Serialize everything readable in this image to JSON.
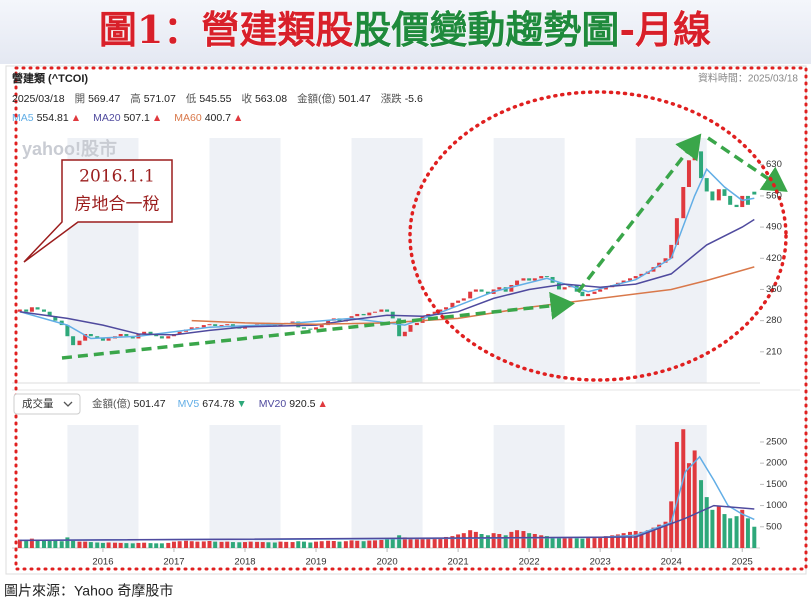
{
  "chart_data": {
    "type": "candlestick",
    "title": [
      "圖1：營建類股",
      "股價變動趨勢圖",
      "-月線"
    ],
    "source": "圖片來源：Yahoo 奇摩股市",
    "watermark": "yahoo!股市",
    "annotation": [
      "2016.1.1",
      "房地合一稅"
    ],
    "header": {
      "name": "營建類 (^TCOI)",
      "time": "資料時間：2025/03/18",
      "date": "2025/03/18",
      "quotes": [
        {
          "label": "開",
          "value": 569.47
        },
        {
          "label": "高",
          "value": 571.07
        },
        {
          "label": "低",
          "value": 545.55
        },
        {
          "label": "收",
          "value": 563.08
        },
        {
          "label": "金額(億)",
          "value": 501.47
        },
        {
          "label": "漲跌",
          "value": -5.6
        }
      ]
    },
    "up_color": "#e0393e",
    "down_color": "#2ea87a",
    "x": [
      2014.83,
      2014.92,
      2015.0,
      2015.08,
      2015.17,
      2015.25,
      2015.33,
      2015.42,
      2015.5,
      2015.58,
      2015.67,
      2015.75,
      2015.83,
      2015.92,
      2016.0,
      2016.08,
      2016.17,
      2016.25,
      2016.33,
      2016.42,
      2016.5,
      2016.58,
      2016.67,
      2016.75,
      2016.83,
      2016.92,
      2017.0,
      2017.08,
      2017.17,
      2017.25,
      2017.33,
      2017.42,
      2017.5,
      2017.58,
      2017.67,
      2017.75,
      2017.83,
      2017.92,
      2018.0,
      2018.08,
      2018.17,
      2018.25,
      2018.33,
      2018.42,
      2018.5,
      2018.58,
      2018.67,
      2018.75,
      2018.83,
      2018.92,
      2019.0,
      2019.08,
      2019.17,
      2019.25,
      2019.33,
      2019.42,
      2019.5,
      2019.58,
      2019.67,
      2019.75,
      2019.83,
      2019.92,
      2020.0,
      2020.08,
      2020.17,
      2020.25,
      2020.33,
      2020.42,
      2020.5,
      2020.58,
      2020.67,
      2020.75,
      2020.83,
      2020.92,
      2021.0,
      2021.08,
      2021.17,
      2021.25,
      2021.33,
      2021.42,
      2021.5,
      2021.58,
      2021.67,
      2021.75,
      2021.83,
      2021.92,
      2022.0,
      2022.08,
      2022.17,
      2022.25,
      2022.33,
      2022.42,
      2022.5,
      2022.58,
      2022.67,
      2022.75,
      2022.83,
      2022.92,
      2023.0,
      2023.08,
      2023.17,
      2023.25,
      2023.33,
      2023.42,
      2023.5,
      2023.58,
      2023.67,
      2023.75,
      2023.83,
      2023.92,
      2024.0,
      2024.08,
      2024.17,
      2024.25,
      2024.33,
      2024.42,
      2024.5,
      2024.58,
      2024.67,
      2024.75,
      2024.83,
      2024.92,
      2025.0,
      2025.08,
      2025.17
    ],
    "open": [
      300,
      305,
      300,
      310,
      305,
      300,
      290,
      280,
      270,
      245,
      225,
      235,
      250,
      245,
      240,
      235,
      240,
      245,
      250,
      245,
      240,
      250,
      255,
      250,
      245,
      240,
      245,
      250,
      255,
      260,
      265,
      265,
      270,
      272,
      268,
      270,
      272,
      265,
      262,
      268,
      270,
      272,
      275,
      270,
      268,
      272,
      275,
      278,
      265,
      262,
      260,
      265,
      270,
      280,
      285,
      278,
      282,
      290,
      295,
      292,
      298,
      300,
      305,
      300,
      285,
      245,
      255,
      270,
      275,
      290,
      295,
      300,
      305,
      310,
      320,
      325,
      330,
      345,
      350,
      345,
      340,
      350,
      355,
      345,
      360,
      370,
      375,
      370,
      375,
      380,
      378,
      365,
      350,
      355,
      360,
      345,
      335,
      340,
      345,
      350,
      355,
      360,
      365,
      370,
      375,
      380,
      385,
      390,
      400,
      410,
      420,
      450,
      510,
      580,
      640,
      660,
      600,
      570,
      550,
      575,
      560,
      540,
      535,
      560,
      569.47
    ],
    "close": [
      305,
      300,
      310,
      305,
      300,
      290,
      280,
      270,
      245,
      225,
      235,
      250,
      245,
      240,
      235,
      240,
      245,
      250,
      245,
      240,
      250,
      255,
      250,
      245,
      240,
      245,
      250,
      255,
      260,
      265,
      265,
      270,
      272,
      268,
      270,
      272,
      265,
      262,
      268,
      270,
      272,
      275,
      270,
      268,
      272,
      275,
      278,
      265,
      262,
      260,
      265,
      270,
      280,
      285,
      278,
      282,
      290,
      295,
      292,
      298,
      300,
      305,
      300,
      285,
      245,
      255,
      270,
      275,
      290,
      295,
      300,
      305,
      310,
      320,
      325,
      330,
      345,
      350,
      345,
      340,
      350,
      355,
      345,
      360,
      370,
      375,
      370,
      375,
      380,
      378,
      365,
      350,
      355,
      360,
      345,
      335,
      340,
      345,
      350,
      355,
      360,
      365,
      370,
      375,
      380,
      385,
      390,
      400,
      410,
      420,
      450,
      510,
      580,
      640,
      660,
      600,
      570,
      550,
      575,
      560,
      540,
      535,
      560,
      540,
      563.08
    ],
    "volume": [
      200,
      180,
      220,
      200,
      190,
      180,
      170,
      160,
      250,
      200,
      150,
      150,
      140,
      130,
      120,
      130,
      125,
      120,
      115,
      110,
      120,
      125,
      115,
      110,
      110,
      120,
      150,
      160,
      170,
      160,
      150,
      155,
      165,
      150,
      145,
      150,
      140,
      135,
      140,
      150,
      145,
      140,
      135,
      130,
      150,
      145,
      140,
      160,
      150,
      130,
      150,
      160,
      170,
      165,
      150,
      160,
      180,
      170,
      160,
      175,
      180,
      190,
      200,
      220,
      300,
      250,
      230,
      210,
      240,
      230,
      220,
      240,
      260,
      280,
      320,
      350,
      420,
      380,
      330,
      300,
      350,
      330,
      300,
      380,
      420,
      400,
      350,
      330,
      300,
      280,
      260,
      240,
      250,
      260,
      230,
      220,
      240,
      250,
      260,
      280,
      300,
      320,
      350,
      380,
      400,
      380,
      420,
      480,
      550,
      620,
      1100,
      2500,
      2800,
      2000,
      2300,
      1600,
      1200,
      900,
      1000,
      800,
      700,
      750,
      900,
      700,
      501.47
    ],
    "xlim": [
      2014.72,
      2025.25
    ],
    "xticks": [
      2016,
      2017,
      2018,
      2019,
      2020,
      2021,
      2022,
      2023,
      2024,
      2025
    ],
    "ylim": [
      140,
      690
    ],
    "yticks": [
      210,
      280,
      350,
      420,
      490,
      560,
      630
    ],
    "volume_ylim": [
      0,
      2900
    ],
    "volume_yticks": [
      500,
      1000,
      1500,
      2000,
      2500
    ],
    "lines": [
      {
        "name": "MA5",
        "color": "#62aee6",
        "last": 554.81,
        "trend": "▲",
        "trend_color": "#e0393e",
        "x": [
          2014.83,
          2015.5,
          2015.83,
          2016.5,
          2017.5,
          2018.5,
          2019.5,
          2020.25,
          2020.75,
          2021.5,
          2022.25,
          2022.83,
          2023.5,
          2024.0,
          2024.33,
          2024.5,
          2024.75,
          2025.0,
          2025.17
        ],
        "values": [
          300,
          270,
          240,
          245,
          265,
          272,
          285,
          270,
          298,
          345,
          375,
          345,
          372,
          420,
          560,
          620,
          580,
          550,
          554.81
        ]
      },
      {
        "name": "MA20",
        "color": "#4f4a9e",
        "last": 507.1,
        "trend": "▲",
        "trend_color": "#e0393e",
        "x": [
          2014.83,
          2015.5,
          2016.0,
          2016.5,
          2017.0,
          2017.5,
          2018.0,
          2019.0,
          2019.5,
          2020.0,
          2020.5,
          2021.0,
          2021.5,
          2022.0,
          2022.5,
          2023.0,
          2023.5,
          2024.0,
          2024.5,
          2025.0,
          2025.17
        ],
        "values": [
          300,
          285,
          270,
          250,
          248,
          258,
          266,
          270,
          282,
          292,
          290,
          300,
          330,
          350,
          362,
          355,
          362,
          385,
          450,
          490,
          507.1
        ]
      },
      {
        "name": "MA60",
        "color": "#d9784a",
        "last": 400.7,
        "trend": "▲",
        "trend_color": "#e0393e",
        "x": [
          2017.25,
          2018.0,
          2019.0,
          2020.0,
          2021.0,
          2022.0,
          2023.0,
          2024.0,
          2024.5,
          2025.17
        ],
        "values": [
          280,
          275,
          272,
          275,
          285,
          310,
          330,
          350,
          370,
          400.7
        ]
      }
    ],
    "volume_header": {
      "selector": "成交量",
      "amount_label": "金額(億)",
      "amount": 501.47
    },
    "volume_lines": [
      {
        "name": "MV5",
        "color": "#62aee6",
        "last": 674.78,
        "trend": "▼",
        "trend_color": "#2ea87a",
        "x": [
          2014.83,
          2020.0,
          2023.0,
          2023.5,
          2024.0,
          2024.2,
          2024.4,
          2024.6,
          2024.8,
          2025.0,
          2025.17
        ],
        "values": [
          180,
          220,
          250,
          300,
          600,
          1800,
          2150,
          1600,
          1000,
          800,
          674.78
        ]
      },
      {
        "name": "MV20",
        "color": "#4f4a9e",
        "last": 920.5,
        "trend": "▲",
        "trend_color": "#e0393e",
        "x": [
          2014.83,
          2023.5,
          2024.2,
          2024.6,
          2025.17
        ],
        "values": [
          180,
          260,
          700,
          1000,
          920.5
        ]
      }
    ]
  }
}
